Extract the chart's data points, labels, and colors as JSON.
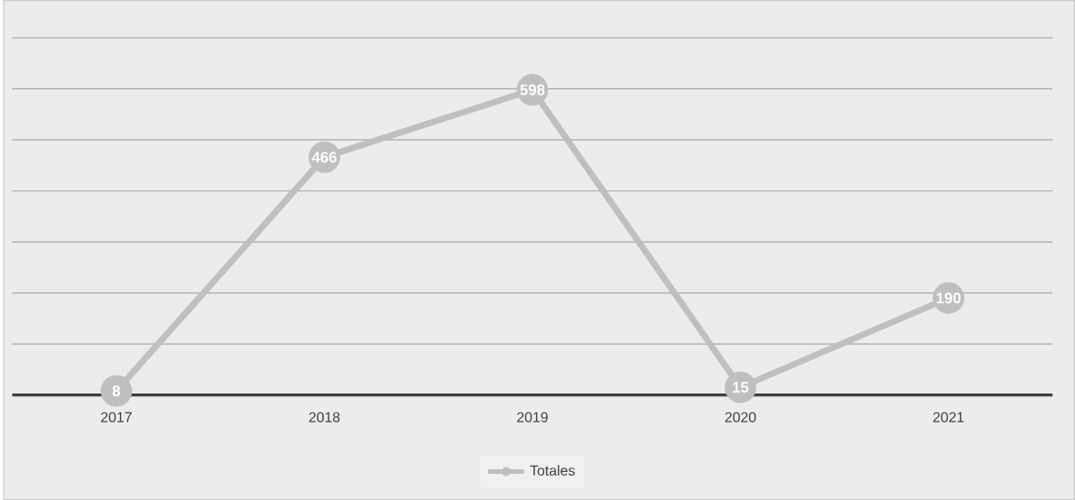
{
  "chart_data": {
    "type": "line",
    "categories": [
      "2017",
      "2018",
      "2019",
      "2020",
      "2021"
    ],
    "series": [
      {
        "name": "Totales",
        "color": "#bfbfbf",
        "values": [
          8,
          466,
          598,
          15,
          190
        ]
      }
    ],
    "ylim": [
      0,
      700
    ],
    "tick_labels": "x",
    "grid": "y",
    "legend": "bottom",
    "marker": "circle",
    "line_style": "solid",
    "data_labels": true
  }
}
